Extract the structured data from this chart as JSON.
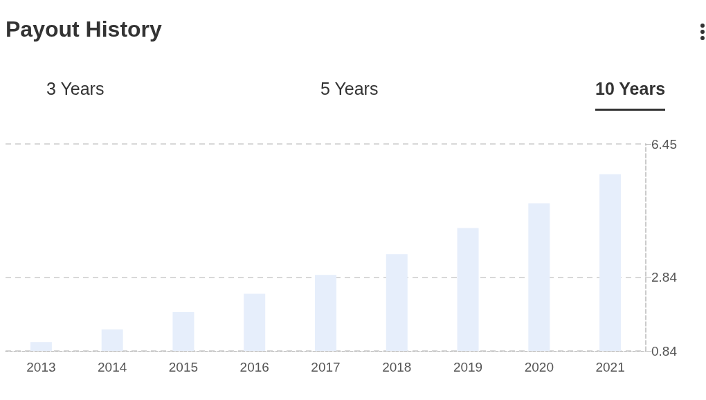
{
  "chart_data": {
    "type": "bar",
    "title": "Payout History",
    "annotations": [
      "3 Years",
      "5 Years",
      "10 Years"
    ],
    "categories": [
      "2013",
      "2014",
      "2015",
      "2016",
      "2017",
      "2018",
      "2019",
      "2020",
      "2021"
    ],
    "values": [
      1.08,
      1.42,
      1.89,
      2.39,
      2.9,
      3.46,
      4.17,
      4.84,
      5.63
    ],
    "color": "#e6eefb",
    "ylim": [
      0.84,
      6.45
    ],
    "yticks": [
      0.84,
      2.84,
      6.45
    ],
    "grid": "y"
  }
}
